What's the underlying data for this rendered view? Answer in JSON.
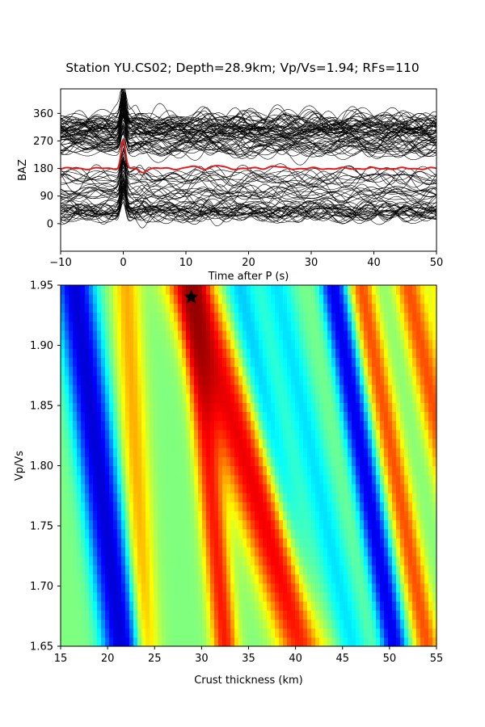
{
  "figure": {
    "title": "Station YU.CS02; Depth=28.9km; Vp/Vs=1.94; RFs=110"
  },
  "chart_data": [
    {
      "type": "line",
      "title": "Station YU.CS02; Depth=28.9km; Vp/Vs=1.94; RFs=110",
      "xlabel": "Time after P (s)",
      "ylabel": "BAZ",
      "xlim": [
        -10,
        50
      ],
      "ylim": [
        -90,
        440
      ],
      "x_ticks": [
        -10,
        0,
        10,
        20,
        30,
        40,
        50
      ],
      "y_ticks": [
        0,
        90,
        180,
        270,
        360
      ],
      "grid": false,
      "colors": {
        "traces": "#000000",
        "stack": "#e41a1c"
      },
      "series": [
        {
          "kind": "individual traces",
          "count": 110,
          "baz_clusters": [
            {
              "baz": 40,
              "n": 26
            },
            {
              "baz": 100,
              "n": 12
            },
            {
              "baz": 150,
              "n": 10
            },
            {
              "baz": 250,
              "n": 18
            },
            {
              "baz": 300,
              "n": 28
            },
            {
              "baz": 335,
              "n": 16
            }
          ]
        },
        {
          "kind": "stacked trace",
          "baseline": 180,
          "pulses": [
            {
              "t": 0,
              "amp": 90,
              "width": 0.35
            },
            {
              "t": 3,
              "amp": -12,
              "width": 0.5
            },
            {
              "t": 11,
              "amp": 6,
              "width": 0.7
            },
            {
              "t": 15,
              "amp": 9,
              "width": 0.8
            },
            {
              "t": 24,
              "amp": 8,
              "width": 0.8
            }
          ]
        }
      ]
    },
    {
      "type": "heatmap",
      "xlabel": "Crust thickness (km)",
      "ylabel": "Vp/Vs",
      "xlim": [
        15,
        55
      ],
      "ylim": [
        1.65,
        1.95
      ],
      "x_ticks": [
        15,
        20,
        25,
        30,
        35,
        40,
        45,
        50,
        55
      ],
      "y_ticks": [
        1.65,
        1.7,
        1.75,
        1.8,
        1.85,
        1.9,
        1.95
      ],
      "colormap": "jet",
      "grid": false,
      "best_estimate": {
        "H": 28.9,
        "vpvs": 1.94,
        "marker": "star"
      },
      "ridges": [
        {
          "H_at_165": 21.5,
          "H_at_195": 16.5,
          "amp": -0.95,
          "width": 1.3
        },
        {
          "H_at_165": 24.0,
          "H_at_195": 22.0,
          "amp": 0.35,
          "width": 1.0
        },
        {
          "H_at_165": 32.5,
          "H_at_195": 29.0,
          "amp": 0.7,
          "width": 0.9
        },
        {
          "H_at_165": 41.0,
          "H_at_195": 28.8,
          "amp": 0.85,
          "width": 1.7
        },
        {
          "H_at_165": 42.0,
          "H_at_195": 34.0,
          "amp": -0.3,
          "width": 1.2
        },
        {
          "H_at_165": 46.0,
          "H_at_195": 38.0,
          "amp": -0.25,
          "width": 1.2
        },
        {
          "H_at_165": 50.5,
          "H_at_195": 44.0,
          "amp": -0.85,
          "width": 0.9
        },
        {
          "H_at_165": 54.0,
          "H_at_195": 47.0,
          "amp": 0.55,
          "width": 0.9
        },
        {
          "H_at_165": 60.0,
          "H_at_195": 52.0,
          "amp": 0.55,
          "width": 1.0
        },
        {
          "H_at_165": 62.0,
          "H_at_195": 56.0,
          "amp": 0.35,
          "width": 1.2
        }
      ]
    }
  ]
}
